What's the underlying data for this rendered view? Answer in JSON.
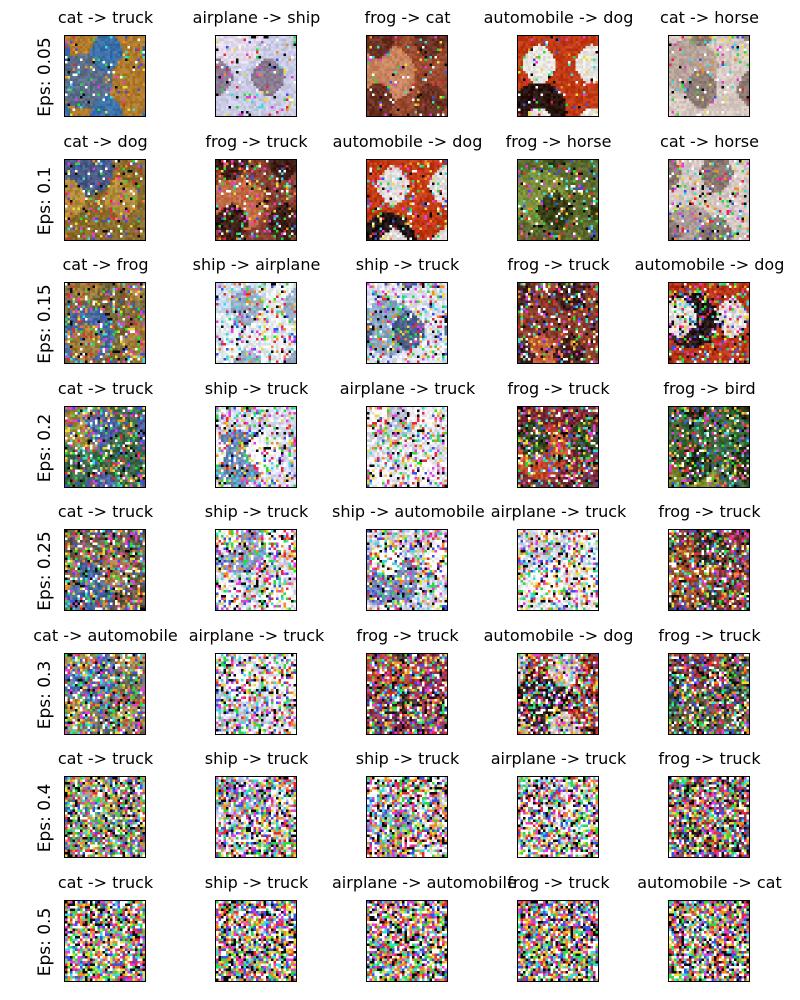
{
  "rows": [
    {
      "label": "Eps: 0.05",
      "eps": 0.05,
      "items": [
        {
          "title": "cat -> truck",
          "colors": [
            "#b07a2c",
            "#5a6e8a",
            "#3b6fa8"
          ]
        },
        {
          "title": "airplane -> ship",
          "colors": [
            "#c9cbe4",
            "#e0d8e8",
            "#8a7a92"
          ]
        },
        {
          "title": "frog -> cat",
          "colors": [
            "#9a4a2e",
            "#c8845e",
            "#6a3022"
          ]
        },
        {
          "title": "automobile -> dog",
          "colors": [
            "#c13a16",
            "#2a1410",
            "#e8e4e0"
          ]
        },
        {
          "title": "cat -> horse",
          "colors": [
            "#d8c8c2",
            "#b8a49a",
            "#8f7c74"
          ]
        }
      ]
    },
    {
      "label": "Eps: 0.1",
      "eps": 0.1,
      "items": [
        {
          "title": "cat -> dog",
          "colors": [
            "#8a6d2c",
            "#4a5a86",
            "#b08c3a"
          ]
        },
        {
          "title": "frog -> truck",
          "colors": [
            "#8a4030",
            "#c06a46",
            "#402018"
          ]
        },
        {
          "title": "automobile -> dog",
          "colors": [
            "#c23a14",
            "#201414",
            "#e0dcdc"
          ]
        },
        {
          "title": "frog -> horse",
          "colors": [
            "#5c6a2e",
            "#7a8e3a",
            "#384018"
          ]
        },
        {
          "title": "cat -> horse",
          "colors": [
            "#d6c8c4",
            "#ad9c98",
            "#8a7670"
          ]
        }
      ]
    },
    {
      "label": "Eps: 0.15",
      "eps": 0.15,
      "items": [
        {
          "title": "cat -> frog",
          "colors": [
            "#7a6a3a",
            "#4a6aa0",
            "#a07c3a"
          ]
        },
        {
          "title": "ship -> airplane",
          "colors": [
            "#e4ecf0",
            "#c8dcf4",
            "#9ab0c8"
          ]
        },
        {
          "title": "ship -> truck",
          "colors": [
            "#dce0f0",
            "#8aa8c8",
            "#4a6088"
          ]
        },
        {
          "title": "frog -> truck",
          "colors": [
            "#8c3e2e",
            "#c0603a",
            "#4a2420"
          ]
        },
        {
          "title": "automobile -> dog",
          "colors": [
            "#b83418",
            "#281818",
            "#e4dcdc"
          ]
        }
      ]
    },
    {
      "label": "Eps: 0.2",
      "eps": 0.2,
      "items": [
        {
          "title": "cat -> truck",
          "colors": [
            "#3a6a4a",
            "#a08a3a",
            "#5060a0"
          ]
        },
        {
          "title": "ship -> truck",
          "colors": [
            "#d8dcf0",
            "#6a8ab8",
            "#ffffff"
          ]
        },
        {
          "title": "airplane -> truck",
          "colors": [
            "#e0e0ec",
            "#c0c4d8",
            "#f4f0f4"
          ]
        },
        {
          "title": "frog -> truck",
          "colors": [
            "#7a2c3a",
            "#c04a2a",
            "#3a4a20"
          ]
        },
        {
          "title": "frog -> bird",
          "colors": [
            "#3a6a3a",
            "#7a8a2a",
            "#2a3a18"
          ]
        }
      ]
    },
    {
      "label": "Eps: 0.25",
      "eps": 0.25,
      "items": [
        {
          "title": "cat -> truck",
          "colors": [
            "#6a5a4a",
            "#4a6a9a",
            "#a07a4a"
          ]
        },
        {
          "title": "ship -> truck",
          "colors": [
            "#dcdcf0",
            "#8a9ac8",
            "#ffffff"
          ]
        },
        {
          "title": "ship -> automobile",
          "colors": [
            "#d4d4ec",
            "#7a8ac0",
            "#ffffff"
          ]
        },
        {
          "title": "airplane -> truck",
          "colors": [
            "#e8e8f0",
            "#c8d0e0",
            "#ffffff"
          ]
        },
        {
          "title": "frog -> truck",
          "colors": [
            "#7a3a3a",
            "#a0502a",
            "#3a3a2a"
          ]
        }
      ]
    },
    {
      "label": "Eps: 0.3",
      "eps": 0.3,
      "items": [
        {
          "title": "cat -> automobile",
          "colors": [
            "#6a6a5a",
            "#5070a0",
            "#a08a50"
          ]
        },
        {
          "title": "airplane -> truck",
          "colors": [
            "#e4e4f0",
            "#c0c8e0",
            "#ffffff"
          ]
        },
        {
          "title": "frog -> truck",
          "colors": [
            "#8a3050",
            "#b04030",
            "#403030"
          ]
        },
        {
          "title": "automobile -> dog",
          "colors": [
            "#a03020",
            "#302020",
            "#d0c0c0"
          ]
        },
        {
          "title": "frog -> truck",
          "colors": [
            "#5a5a3a",
            "#803a3a",
            "#3a4a3a"
          ]
        }
      ]
    },
    {
      "label": "Eps: 0.4",
      "eps": 0.4,
      "items": [
        {
          "title": "cat -> truck",
          "colors": [
            "#6a8a6a",
            "#50a070",
            "#a09a70"
          ]
        },
        {
          "title": "ship -> truck",
          "colors": [
            "#e0e0f0",
            "#a0a8d8",
            "#ffffff"
          ]
        },
        {
          "title": "ship -> truck",
          "colors": [
            "#d0d8e8",
            "#8aa0c0",
            "#ffffff"
          ]
        },
        {
          "title": "airplane -> truck",
          "colors": [
            "#e8e8f4",
            "#d0d4e8",
            "#ffffff"
          ]
        },
        {
          "title": "frog -> truck",
          "colors": [
            "#8a3a5a",
            "#c04040",
            "#4a3a4a"
          ]
        }
      ]
    },
    {
      "label": "Eps: 0.5",
      "eps": 0.5,
      "items": [
        {
          "title": "cat -> truck",
          "colors": [
            "#7aa07a",
            "#5ab070",
            "#b0b080"
          ]
        },
        {
          "title": "ship -> truck",
          "colors": [
            "#d8d8f0",
            "#9098d0",
            "#ffffff"
          ]
        },
        {
          "title": "airplane -> automobile",
          "colors": [
            "#e8e8f0",
            "#c8d0e8",
            "#ffffff"
          ]
        },
        {
          "title": "frog -> truck",
          "colors": [
            "#9a3a6a",
            "#c04a5a",
            "#504050"
          ]
        },
        {
          "title": "automobile -> cat",
          "colors": [
            "#a03a3a",
            "#503030",
            "#c08080"
          ]
        }
      ]
    }
  ]
}
